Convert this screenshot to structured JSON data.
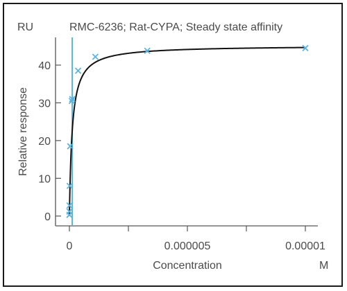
{
  "chart_data": {
    "type": "scatter",
    "title": "RMC-6236; Rat-CYPA; Steady state affinity",
    "y_unit": "RU",
    "x_unit": "M",
    "xlabel": "Concentration",
    "ylabel": "Relative response",
    "xlim": [
      0,
      1e-05
    ],
    "ylim": [
      -1.5,
      46
    ],
    "x_ticks": [
      {
        "value": 0,
        "label": "0"
      },
      {
        "value": 2.5e-06,
        "label": ""
      },
      {
        "value": 5e-06,
        "label": "0.000005"
      },
      {
        "value": 7.5e-06,
        "label": ""
      },
      {
        "value": 1e-05,
        "label": "0.00001"
      }
    ],
    "y_ticks": [
      {
        "value": 0,
        "label": "0"
      },
      {
        "value": 10,
        "label": "10"
      },
      {
        "value": 20,
        "label": "20"
      },
      {
        "value": 30,
        "label": "30"
      },
      {
        "value": 40,
        "label": "40"
      }
    ],
    "vertical_marker_x": 1.2e-07,
    "fit": {
      "rmax": 45.2,
      "kd": 1.2e-07
    },
    "series": [
      {
        "x": [
          0,
          1.2e-09,
          3.7e-09,
          1.1e-08,
          3.3e-08,
          1e-07,
          1.2e-07,
          3.7e-07,
          1.1e-06,
          3.3e-06,
          1e-05
        ],
        "y": [
          0.3,
          1.2,
          2.8,
          8.0,
          18.5,
          30.5,
          31.0,
          38.5,
          42.2,
          43.8,
          44.5
        ]
      }
    ],
    "grid": false,
    "colors": {
      "marker": "#5ab4e0",
      "vertical_line": "#5ab4e0",
      "fit_line": "#111111",
      "axis": "#555555",
      "text": "#4a4a4a"
    }
  }
}
